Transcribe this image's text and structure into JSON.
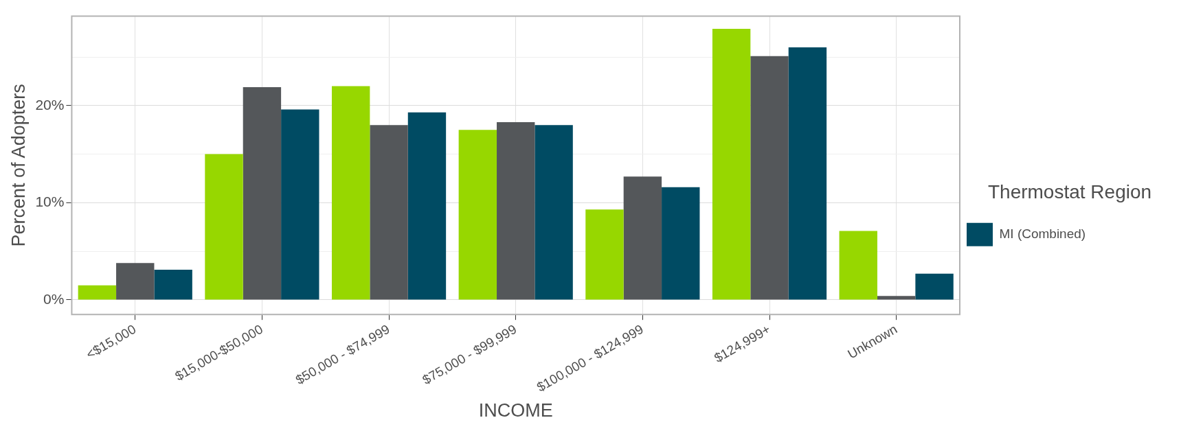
{
  "chart_data": {
    "type": "bar",
    "xlabel": "INCOME",
    "ylabel": "Percent of Adopters",
    "legend_title": "Thermostat Region",
    "categories": [
      "<$15,000",
      "$15,000-$50,000",
      "$50,000 - $74,999",
      "$75,000 - $99,999",
      "$100,000 - $124,999",
      "$124,999+",
      "Unknown"
    ],
    "series": [
      {
        "color": "#97d700",
        "values": [
          1.5,
          15,
          22,
          17.5,
          9.3,
          27.9,
          7.1
        ]
      },
      {
        "color": "#54575a",
        "values": [
          3.8,
          21.9,
          18,
          18.3,
          12.7,
          25.1,
          0.4
        ]
      },
      {
        "name": "MI (Combined)",
        "color": "#004b63",
        "values": [
          3.1,
          19.6,
          19.3,
          18,
          11.6,
          26,
          2.7
        ]
      }
    ],
    "ylim": [
      -1.5,
      29.2
    ],
    "yticks": [
      {
        "value": 0,
        "label": "0%"
      },
      {
        "value": 5,
        "label": null
      },
      {
        "value": 10,
        "label": "10%"
      },
      {
        "value": 15,
        "label": null
      },
      {
        "value": 20,
        "label": "20%"
      },
      {
        "value": 25,
        "label": null
      }
    ],
    "grid": true,
    "legend": "right"
  }
}
